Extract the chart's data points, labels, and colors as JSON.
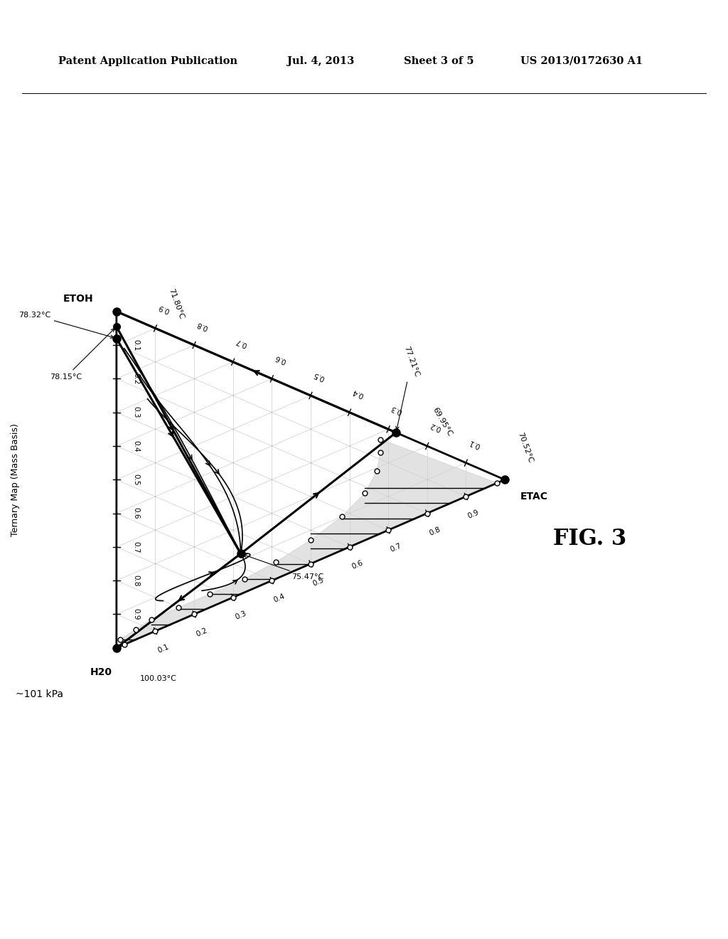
{
  "title_header": "Patent Application Publication",
  "date_header": "Jul. 4, 2013",
  "sheet_header": "Sheet 3 of 5",
  "patent_header": "US 2013/0172630 A1",
  "fig_label": "FIG. 3",
  "pressure_label": "~101 kPa",
  "ternary_label": "Ternary Map (Mass Basis)",
  "corner_temps": {
    "ETOH": "71.80°C",
    "H2O": "100.03°C",
    "ETAC": "70.52°C"
  },
  "azeotrope_temps": {
    "binary_ETOH_ETAC": "77.21°C",
    "binary_ETOH_H2O": "78.15°C",
    "binary_H2O_ETAC": "78.32°C",
    "ternary": "75.47°C",
    "saddle": "69.95°C"
  },
  "background_color": "#ffffff",
  "line_color": "#000000"
}
